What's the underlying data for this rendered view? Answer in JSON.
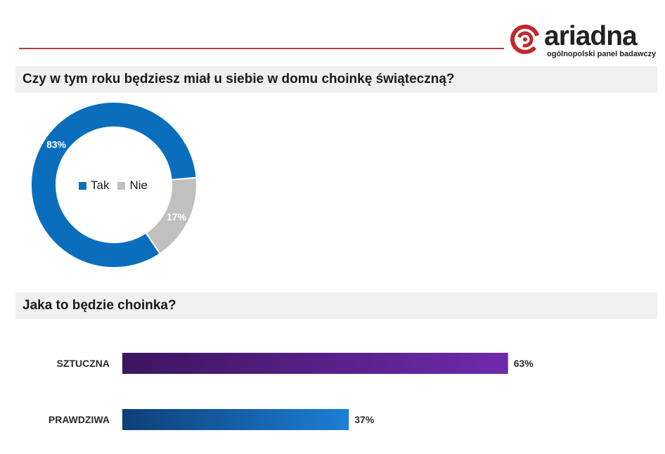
{
  "logo": {
    "word": "ariadna",
    "tagline": "ogólnopolski panel badawczy"
  },
  "colors": {
    "accent_rule": "#b33a3a",
    "logo_red": "#c0282d",
    "tak": "#0a6ebd",
    "nie": "#c0c0c0",
    "bar_sztuczna_start": "#3d155f",
    "bar_sztuczna_end": "#6f2aad",
    "bar_prawdziwa_start": "#0e3f78",
    "bar_prawdziwa_end": "#1c7fd6"
  },
  "q1": {
    "title": "Czy w tym roku będziesz miał u siebie w domu choinkę świąteczną?"
  },
  "q2": {
    "title": "Jaka to będzie choinka?"
  },
  "chart_data": [
    {
      "type": "pie",
      "variant": "donut",
      "title": "Czy w tym roku będziesz miał u siebie w domu choinkę świąteczną?",
      "categories": [
        "Tak",
        "Nie"
      ],
      "values": [
        83,
        17
      ],
      "labels": [
        "83%",
        "17%"
      ],
      "unit": "%",
      "legend": "center"
    },
    {
      "type": "bar",
      "orientation": "horizontal",
      "title": "Jaka to będzie choinka?",
      "categories": [
        "SZTUCZNA",
        "PRAWDZIWA"
      ],
      "values": [
        63,
        37
      ],
      "labels": [
        "63%",
        "37%"
      ],
      "unit": "%",
      "xlim": [
        0,
        100
      ]
    }
  ]
}
